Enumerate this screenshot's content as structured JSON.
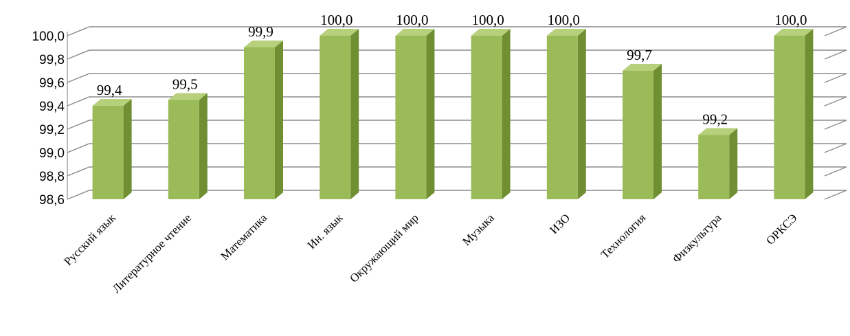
{
  "chart_data": {
    "type": "bar",
    "title": "",
    "xlabel": "",
    "ylabel": "",
    "ylim": [
      98.6,
      100.0
    ],
    "yticks": [
      "98,6",
      "98,8",
      "99,0",
      "99,2",
      "99,4",
      "99,6",
      "99,8",
      "100,0"
    ],
    "grid": true,
    "legend": "none",
    "categories": [
      "Русский язык",
      "Литературное чтение",
      "Математика",
      "Ин. язык",
      "Окружающий мир",
      "Музыка",
      "ИЗО",
      "Технология",
      "Физкультура",
      "ОРКСЭ"
    ],
    "values": [
      99.4,
      99.45,
      99.9,
      100.0,
      100.0,
      100.0,
      100.0,
      99.7,
      99.15,
      100.0
    ],
    "data_labels": [
      "99,4",
      "99,5",
      "99,9",
      "100,0",
      "100,0",
      "100,0",
      "100,0",
      "99,7",
      "99,2",
      "100,0"
    ],
    "colors": {
      "bar_front": "#9bbb59",
      "bar_side": "#6f8f32",
      "bar_top": "#b6d07c",
      "grid": "#8c8c8c"
    }
  }
}
